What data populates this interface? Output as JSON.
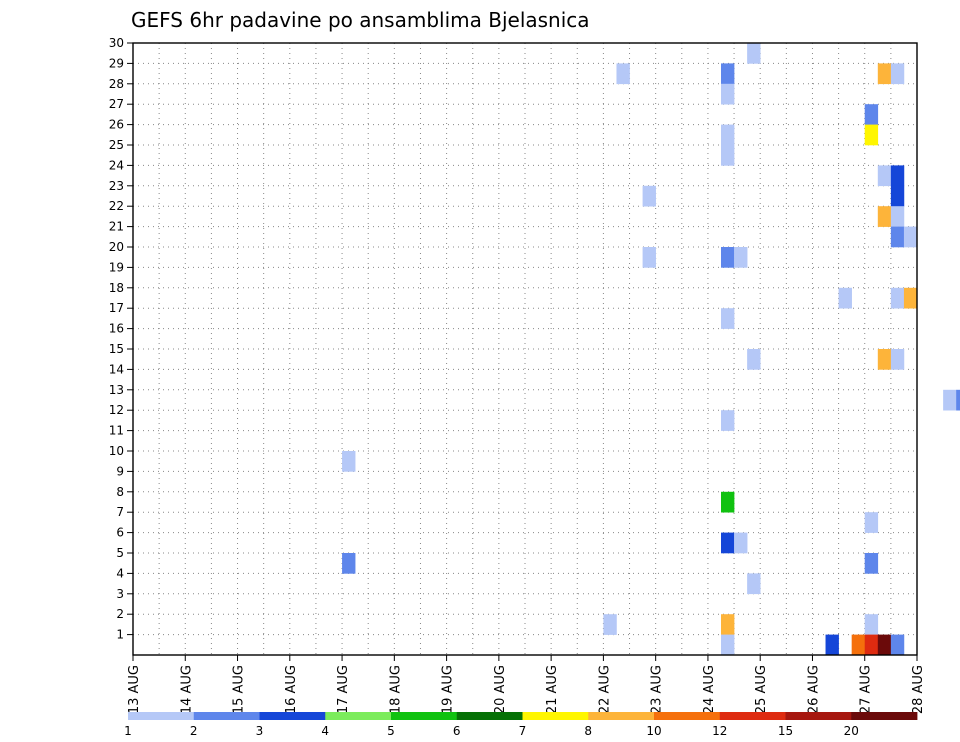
{
  "chart_data": {
    "type": "heatmap",
    "title": "GEFS 6hr padavine po ansamblima Bjelasnica",
    "xlabel": "",
    "ylabel": "",
    "x_tick_labels": [
      "13 AUG",
      "14 AUG",
      "15 AUG",
      "16 AUG",
      "17 AUG",
      "18 AUG",
      "19 AUG",
      "20 AUG",
      "21 AUG",
      "22 AUG",
      "23 AUG",
      "24 AUG",
      "25 AUG",
      "26 AUG",
      "27 AUG",
      "28 AUG"
    ],
    "y_range": [
      0,
      30
    ],
    "y_tick_labels": [
      1,
      2,
      3,
      4,
      5,
      6,
      7,
      8,
      9,
      10,
      11,
      12,
      13,
      14,
      15,
      16,
      17,
      18,
      19,
      20,
      21,
      22,
      23,
      24,
      25,
      26,
      27,
      28,
      29,
      30
    ],
    "time_steps_per_day": 4,
    "grid": true,
    "cells": [
      {
        "t": 47,
        "m": 30,
        "c": 0
      },
      {
        "t": 67,
        "m": 30,
        "c": 0
      },
      {
        "t": 68,
        "m": 30,
        "c": 1
      },
      {
        "t": 78,
        "m": 30,
        "c": 0
      },
      {
        "t": 37,
        "m": 29,
        "c": 0
      },
      {
        "t": 45,
        "m": 29,
        "c": 1
      },
      {
        "t": 57,
        "m": 29,
        "c": 7
      },
      {
        "t": 58,
        "m": 29,
        "c": 0
      },
      {
        "t": 67,
        "m": 29,
        "c": 3
      },
      {
        "t": 68,
        "m": 29,
        "c": 3
      },
      {
        "t": 87,
        "m": 29,
        "c": 1
      },
      {
        "t": 88,
        "m": 29,
        "c": 0
      },
      {
        "t": 141,
        "m": 29,
        "c": 1
      },
      {
        "t": 144,
        "m": 29,
        "c": 6
      },
      {
        "t": 145,
        "m": 29,
        "c": 2
      },
      {
        "t": 45,
        "m": 28,
        "c": 0
      },
      {
        "t": 56,
        "m": 27,
        "c": 1
      },
      {
        "t": 67,
        "m": 27,
        "c": 0
      },
      {
        "t": 74,
        "m": 27,
        "c": 0
      },
      {
        "t": 75,
        "m": 27,
        "c": 11
      },
      {
        "t": 45,
        "m": 26,
        "c": 0
      },
      {
        "t": 56,
        "m": 26,
        "c": 6
      },
      {
        "t": 131,
        "m": 26,
        "c": 0
      },
      {
        "t": 135,
        "m": 26,
        "c": 0
      },
      {
        "t": 45,
        "m": 25,
        "c": 0
      },
      {
        "t": 72,
        "m": 25,
        "c": 6
      },
      {
        "t": 73,
        "m": 25,
        "c": 10
      },
      {
        "t": 74,
        "m": 25,
        "c": 2
      },
      {
        "t": 75,
        "m": 25,
        "c": 1
      },
      {
        "t": 87,
        "m": 25,
        "c": 6
      },
      {
        "t": 109,
        "m": 25,
        "c": 8
      },
      {
        "t": 110,
        "m": 25,
        "c": 1
      },
      {
        "t": 116,
        "m": 25,
        "c": 9
      },
      {
        "t": 57,
        "m": 24,
        "c": 0
      },
      {
        "t": 58,
        "m": 24,
        "c": 2
      },
      {
        "t": 67,
        "m": 24,
        "c": 5
      },
      {
        "t": 80,
        "m": 24,
        "c": 0
      },
      {
        "t": 81,
        "m": 24,
        "c": 0
      },
      {
        "t": 87,
        "m": 24,
        "c": 5
      },
      {
        "t": 93,
        "m": 24,
        "c": 0
      },
      {
        "t": 94,
        "m": 24,
        "c": 1
      },
      {
        "t": 95,
        "m": 24,
        "c": 2
      },
      {
        "t": 39,
        "m": 23,
        "c": 0
      },
      {
        "t": 58,
        "m": 23,
        "c": 2
      },
      {
        "t": 77,
        "m": 23,
        "c": 0
      },
      {
        "t": 136,
        "m": 23,
        "c": 1
      },
      {
        "t": 57,
        "m": 22,
        "c": 7
      },
      {
        "t": 58,
        "m": 22,
        "c": 0
      },
      {
        "t": 76,
        "m": 22,
        "c": 10
      },
      {
        "t": 89,
        "m": 22,
        "c": 0
      },
      {
        "t": 126,
        "m": 22,
        "c": 2
      },
      {
        "t": 58,
        "m": 21,
        "c": 1
      },
      {
        "t": 59,
        "m": 21,
        "c": 0
      },
      {
        "t": 93,
        "m": 21,
        "c": 0
      },
      {
        "t": 39,
        "m": 20,
        "c": 0
      },
      {
        "t": 45,
        "m": 20,
        "c": 1
      },
      {
        "t": 46,
        "m": 20,
        "c": 0
      },
      {
        "t": 67,
        "m": 19,
        "c": 1
      },
      {
        "t": 68,
        "m": 19,
        "c": 0
      },
      {
        "t": 69,
        "m": 19,
        "c": 0
      },
      {
        "t": 70,
        "m": 19,
        "c": 0
      },
      {
        "t": 135,
        "m": 19,
        "c": 0
      },
      {
        "t": 136,
        "m": 19,
        "c": 0
      },
      {
        "t": 54,
        "m": 18,
        "c": 0
      },
      {
        "t": 58,
        "m": 18,
        "c": 0
      },
      {
        "t": 59,
        "m": 18,
        "c": 7
      },
      {
        "t": 45,
        "m": 17,
        "c": 0
      },
      {
        "t": 76,
        "m": 16,
        "c": 1
      },
      {
        "t": 96,
        "m": 16,
        "c": 2
      },
      {
        "t": 97,
        "m": 16,
        "c": 7
      },
      {
        "t": 99,
        "m": 16,
        "c": 0
      },
      {
        "t": 114,
        "m": 16,
        "c": 1
      },
      {
        "t": 115,
        "m": 16,
        "c": 1
      },
      {
        "t": 120,
        "m": 16,
        "c": 0
      },
      {
        "t": 136,
        "m": 16,
        "c": 1
      },
      {
        "t": 137,
        "m": 16,
        "c": 2
      },
      {
        "t": 47,
        "m": 15,
        "c": 0
      },
      {
        "t": 57,
        "m": 15,
        "c": 7
      },
      {
        "t": 58,
        "m": 15,
        "c": 0
      },
      {
        "t": 67,
        "m": 14,
        "c": 5
      },
      {
        "t": 124,
        "m": 14,
        "c": 0
      },
      {
        "t": 62,
        "m": 13,
        "c": 0
      },
      {
        "t": 63,
        "m": 13,
        "c": 1
      },
      {
        "t": 64,
        "m": 13,
        "c": 1
      },
      {
        "t": 65,
        "m": 13,
        "c": 2
      },
      {
        "t": 66,
        "m": 13,
        "c": 2
      },
      {
        "t": 67,
        "m": 13,
        "c": 10
      },
      {
        "t": 68,
        "m": 13,
        "c": 2
      },
      {
        "t": 69,
        "m": 13,
        "c": 0
      },
      {
        "t": 136,
        "m": 13,
        "c": 11
      },
      {
        "t": 137,
        "m": 13,
        "c": 1
      },
      {
        "t": 141,
        "m": 13,
        "c": 0
      },
      {
        "t": 45,
        "m": 12,
        "c": 0
      },
      {
        "t": 65,
        "m": 12,
        "c": 1
      },
      {
        "t": 67,
        "m": 12,
        "c": 4
      },
      {
        "t": 68,
        "m": 11,
        "c": 0
      },
      {
        "t": 69,
        "m": 11,
        "c": 8
      },
      {
        "t": 70,
        "m": 11,
        "c": 4
      },
      {
        "t": 71,
        "m": 11,
        "c": 0
      },
      {
        "t": 83,
        "m": 11,
        "c": 5
      },
      {
        "t": 16,
        "m": 10,
        "c": 0
      },
      {
        "t": 67,
        "m": 10,
        "c": 8
      },
      {
        "t": 116,
        "m": 10,
        "c": 0
      },
      {
        "t": 126,
        "m": 10,
        "c": 11
      },
      {
        "t": 75,
        "m": 9,
        "c": 2
      },
      {
        "t": 76,
        "m": 9,
        "c": 1
      },
      {
        "t": 45,
        "m": 8,
        "c": 4
      },
      {
        "t": 56,
        "m": 7,
        "c": 0
      },
      {
        "t": 71,
        "m": 7,
        "c": 8
      },
      {
        "t": 72,
        "m": 7,
        "c": 5
      },
      {
        "t": 73,
        "m": 7,
        "c": 4
      },
      {
        "t": 74,
        "m": 7,
        "c": 1
      },
      {
        "t": 78,
        "m": 7,
        "c": 0
      },
      {
        "t": 45,
        "m": 6,
        "c": 2
      },
      {
        "t": 46,
        "m": 6,
        "c": 0
      },
      {
        "t": 72,
        "m": 6,
        "c": 4
      },
      {
        "t": 73,
        "m": 6,
        "c": 1
      },
      {
        "t": 77,
        "m": 6,
        "c": 0
      },
      {
        "t": 83,
        "m": 6,
        "c": 0
      },
      {
        "t": 91,
        "m": 6,
        "c": 4
      },
      {
        "t": 92,
        "m": 6,
        "c": 1
      },
      {
        "t": 103,
        "m": 6,
        "c": 5
      },
      {
        "t": 16,
        "m": 5,
        "c": 1
      },
      {
        "t": 56,
        "m": 5,
        "c": 1
      },
      {
        "t": 67,
        "m": 5,
        "c": 2
      },
      {
        "t": 68,
        "m": 5,
        "c": 1
      },
      {
        "t": 74,
        "m": 5,
        "c": 4
      },
      {
        "t": 75,
        "m": 5,
        "c": 0
      },
      {
        "t": 103,
        "m": 5,
        "c": 5
      },
      {
        "t": 47,
        "m": 4,
        "c": 0
      },
      {
        "t": 65,
        "m": 4,
        "c": 9
      },
      {
        "t": 66,
        "m": 4,
        "c": 0
      },
      {
        "t": 126,
        "m": 4,
        "c": 11
      },
      {
        "t": 127,
        "m": 4,
        "c": 0
      },
      {
        "t": 133,
        "m": 4,
        "c": 5
      },
      {
        "t": 67,
        "m": 3,
        "c": 10
      },
      {
        "t": 74,
        "m": 3,
        "c": 0
      },
      {
        "t": 75,
        "m": 3,
        "c": 0
      },
      {
        "t": 83,
        "m": 3,
        "c": 1
      },
      {
        "t": 126,
        "m": 3,
        "c": 10
      },
      {
        "t": 36,
        "m": 2,
        "c": 0
      },
      {
        "t": 45,
        "m": 2,
        "c": 7
      },
      {
        "t": 56,
        "m": 2,
        "c": 0
      },
      {
        "t": 71,
        "m": 2,
        "c": 0
      },
      {
        "t": 72,
        "m": 2,
        "c": 2
      },
      {
        "t": 73,
        "m": 2,
        "c": 0
      },
      {
        "t": 92,
        "m": 2,
        "c": 0
      },
      {
        "t": 137,
        "m": 2,
        "c": 0
      },
      {
        "t": 45,
        "m": 1,
        "c": 0
      },
      {
        "t": 53,
        "m": 1,
        "c": 2
      },
      {
        "t": 55,
        "m": 1,
        "c": 8
      },
      {
        "t": 56,
        "m": 1,
        "c": 9
      },
      {
        "t": 57,
        "m": 1,
        "c": 11
      },
      {
        "t": 58,
        "m": 1,
        "c": 1
      },
      {
        "t": 65,
        "m": 1,
        "c": 9
      },
      {
        "t": 66,
        "m": 1,
        "c": 10
      },
      {
        "t": 67,
        "m": 1,
        "c": 11
      },
      {
        "t": 68,
        "m": 1,
        "c": 0
      },
      {
        "t": 75,
        "m": 1,
        "c": 8
      },
      {
        "t": 76,
        "m": 1,
        "c": 2
      },
      {
        "t": 78,
        "m": 1,
        "c": 0
      },
      {
        "t": 79,
        "m": 1,
        "c": 0
      },
      {
        "t": 80,
        "m": 1,
        "c": 4
      },
      {
        "t": 134,
        "m": 1,
        "c": 0
      },
      {
        "t": 142,
        "m": 1,
        "c": 2
      },
      {
        "t": 143,
        "m": 1,
        "c": 4
      }
    ],
    "legend": {
      "placement": "bottom",
      "colors": [
        "#b5c8f7",
        "#5e86eb",
        "#1546d8",
        "#7cec5c",
        "#10c210",
        "#067106",
        "#fff600",
        "#fdb43a",
        "#f5700c",
        "#de2b10",
        "#a6170f",
        "#6b0a0a"
      ],
      "labels": [
        "1",
        "2",
        "3",
        "4",
        "5",
        "6",
        "7",
        "8",
        "10",
        "12",
        "15",
        "20"
      ]
    }
  }
}
